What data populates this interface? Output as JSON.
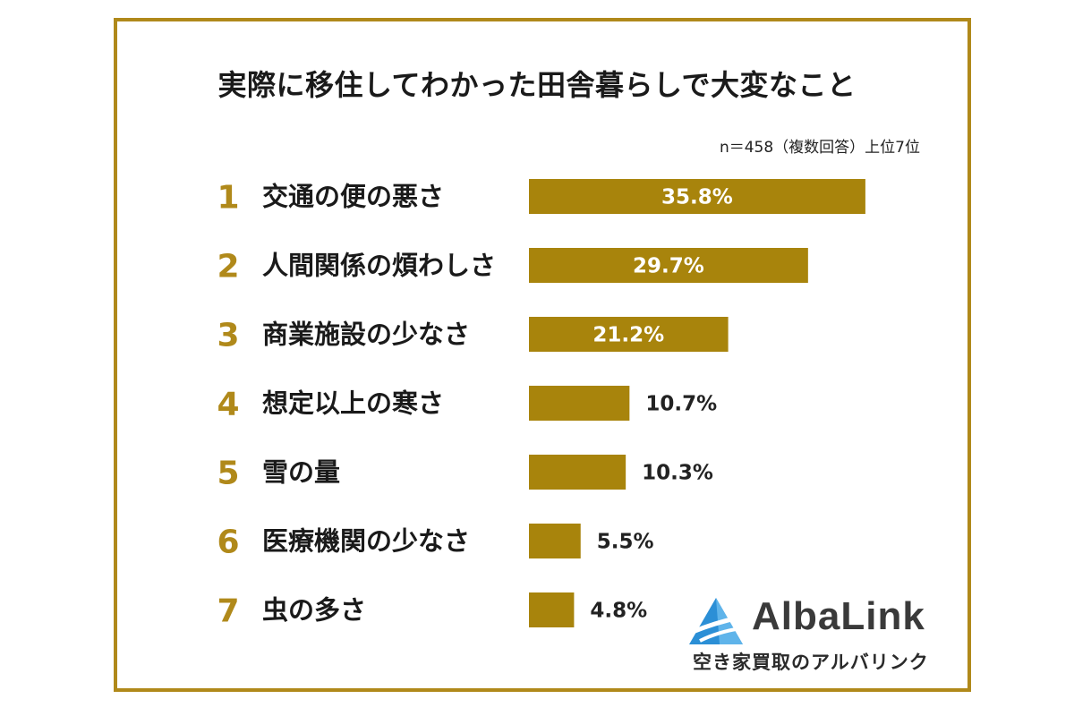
{
  "title": "実際に移住してわかった田舎暮らしで大変なこと",
  "note": "n＝458（複数回答）上位7位",
  "colors": {
    "bar": "#a8840c",
    "rank": "#b0891a",
    "frame": "#b0891a",
    "value_inside": "#ffffff",
    "value_outside": "#222222",
    "logo_blue": "#2b8fd6"
  },
  "chart_data": {
    "type": "bar",
    "orientation": "horizontal",
    "title": "実際に移住してわかった田舎暮らしで大変なこと",
    "ranks": [
      "1",
      "2",
      "3",
      "4",
      "5",
      "6",
      "7"
    ],
    "categories": [
      "交通の便の悪さ",
      "人間関係の煩わしさ",
      "商業施設の少なさ",
      "想定以上の寒さ",
      "雪の量",
      "医療機関の少なさ",
      "虫の多さ"
    ],
    "values": [
      35.8,
      29.7,
      21.2,
      10.7,
      10.3,
      5.5,
      4.8
    ],
    "value_labels": [
      "35.8%",
      "29.7%",
      "21.2%",
      "10.7%",
      "10.3%",
      "5.5%",
      "4.8%"
    ],
    "unit": "%",
    "xlim": [
      0,
      40
    ],
    "grid": false,
    "legend": "none"
  },
  "logo": {
    "name": "AlbaLink",
    "tagline": "空き家買取のアルバリンク",
    "icon": "triangle-logo-icon"
  }
}
